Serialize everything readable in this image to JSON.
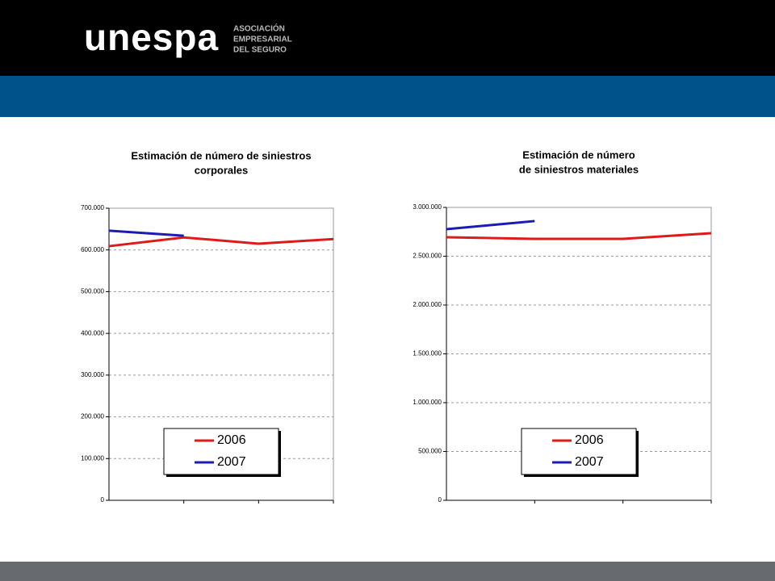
{
  "header": {
    "logo": "unespa",
    "tagline": [
      "ASOCIACIÓN",
      "EMPRESARIAL",
      "DEL SEGURO"
    ]
  },
  "chart_data": [
    {
      "type": "line",
      "title": [
        "Estimación de número de siniestros",
        "corporales"
      ],
      "categories": [
        null,
        null,
        null,
        null
      ],
      "series": [
        {
          "name": "2006",
          "color": "#dd1c1a",
          "values": [
            609000,
            630000,
            615000,
            626000
          ]
        },
        {
          "name": "2007",
          "color": "#1c1cb4",
          "values": [
            646000,
            634000,
            null,
            null
          ]
        }
      ],
      "ylim": [
        0,
        700000
      ],
      "yticks": [
        0,
        {
          "value": 100000,
          "label": "100.000"
        },
        {
          "value": 200000,
          "label": "200.000"
        },
        {
          "value": 300000,
          "label": "300.000"
        },
        {
          "value": 400000,
          "label": "400.000"
        },
        {
          "value": 500000,
          "label": "500.000"
        },
        {
          "value": 600000,
          "label": "600.000"
        },
        {
          "value": 700000,
          "label": "700.000"
        }
      ],
      "grid": true,
      "legend": "lower center"
    },
    {
      "type": "line",
      "title": [
        "Estimación de número",
        "de siniestros materiales"
      ],
      "categories": [
        null,
        null,
        null,
        null
      ],
      "series": [
        {
          "name": "2006",
          "color": "#dd1c1a",
          "values": [
            2694000,
            2678000,
            2678000,
            2736000
          ]
        },
        {
          "name": "2007",
          "color": "#1c1cb4",
          "values": [
            2777000,
            2860000,
            null,
            null
          ]
        }
      ],
      "ylim": [
        0,
        3000000
      ],
      "yticks": [
        0,
        {
          "value": 500000,
          "label": "500.000"
        },
        {
          "value": 1000000,
          "label": "1.000.000"
        },
        {
          "value": 1500000,
          "label": "1.500.000"
        },
        {
          "value": 2000000,
          "label": "2.000.000"
        },
        {
          "value": 2500000,
          "label": "2.500.000"
        },
        {
          "value": 3000000,
          "label": "3.000.000"
        }
      ],
      "grid": true,
      "legend": "lower center"
    }
  ]
}
